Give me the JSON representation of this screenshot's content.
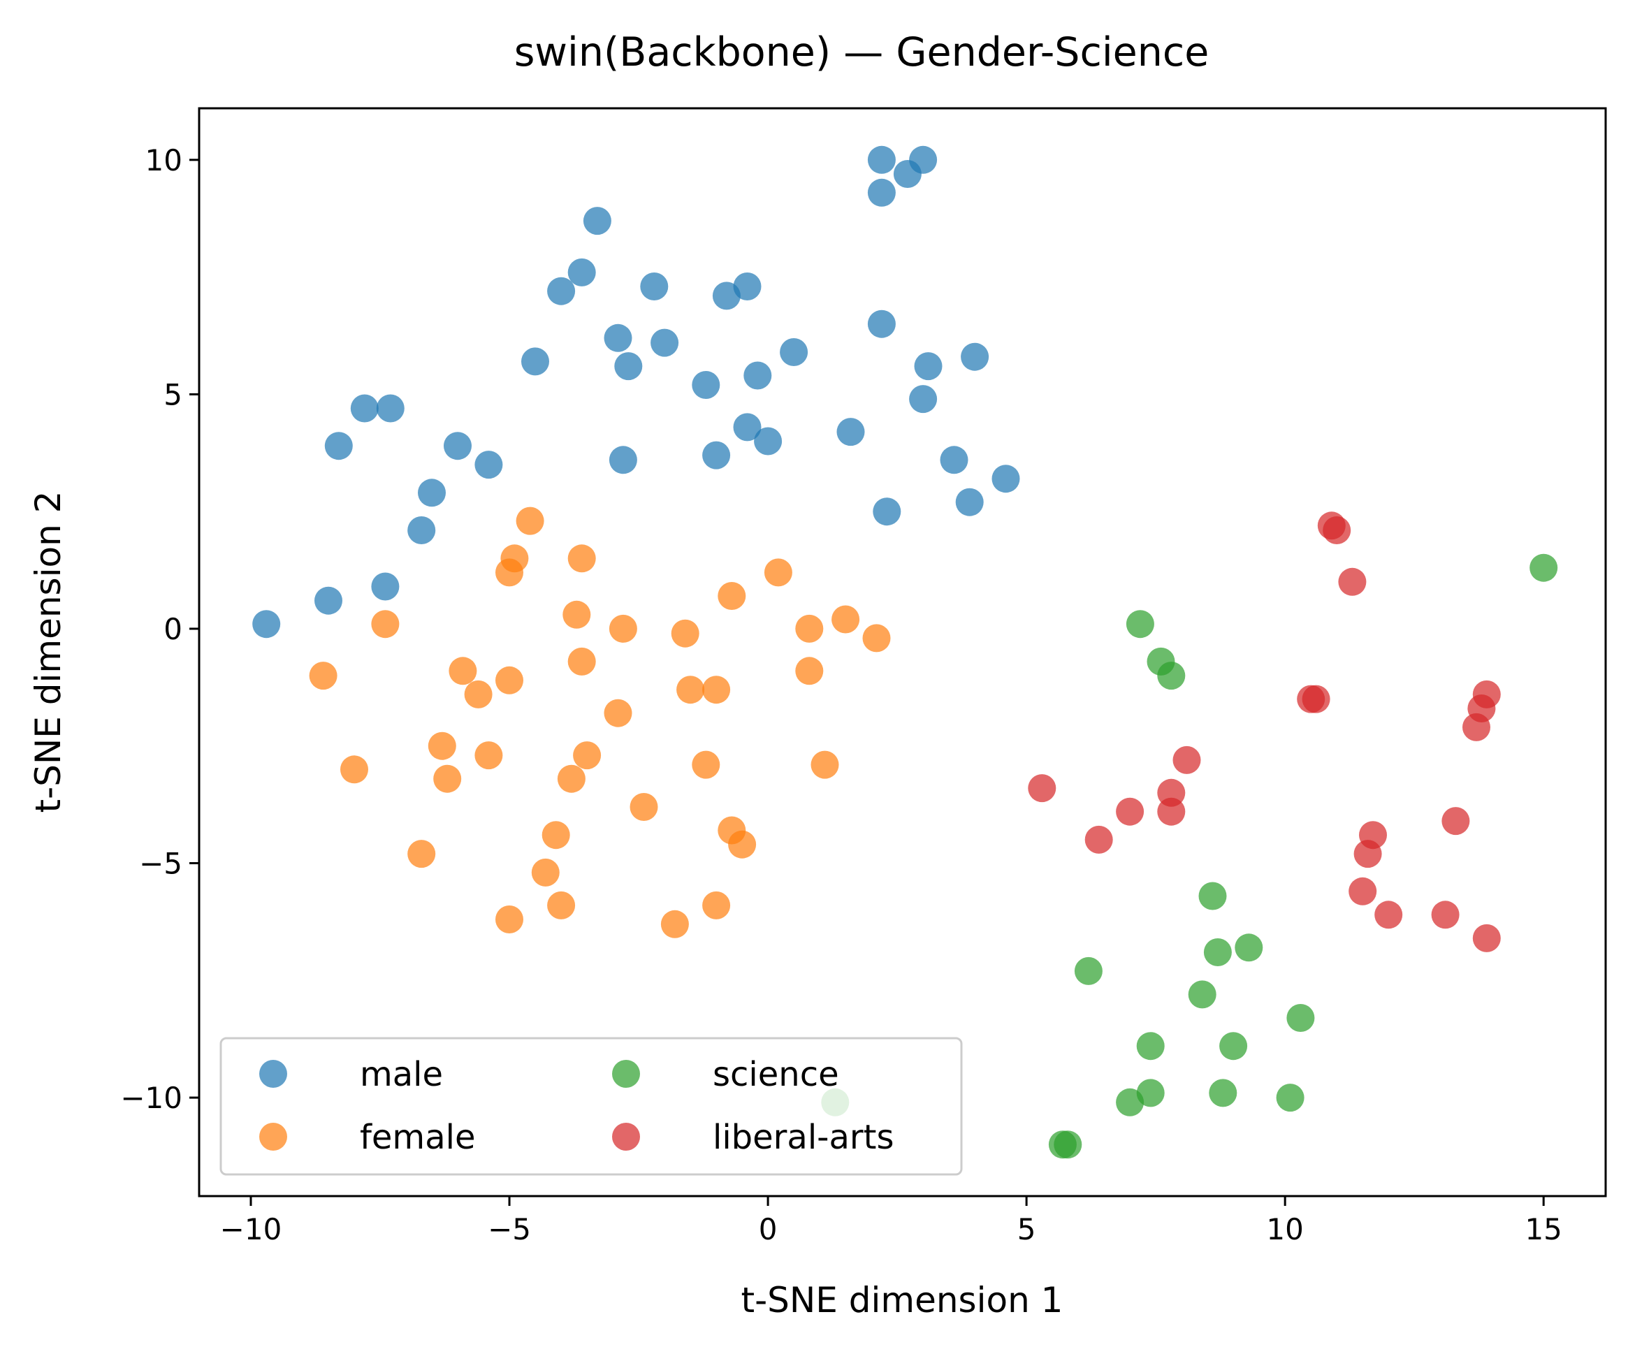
{
  "chart_data": {
    "type": "scatter",
    "title": "swin(Backbone) — Gender-Science",
    "xlabel": "t-SNE dimension 1",
    "ylabel": "t-SNE dimension 2",
    "xlim": [
      -11,
      16.2
    ],
    "ylim": [
      -12.1,
      11.1
    ],
    "xticks": [
      -10,
      -5,
      0,
      5,
      10,
      15
    ],
    "xtick_labels": [
      "−10",
      "−5",
      "0",
      "5",
      "10",
      "15"
    ],
    "yticks": [
      -10,
      -5,
      0,
      5,
      10
    ],
    "ytick_labels": [
      "−10",
      "−5",
      "0",
      "5",
      "10"
    ],
    "grid": false,
    "legend": {
      "placement": "lower-left",
      "columns": 2
    },
    "series": [
      {
        "name": "male",
        "color": "#1f77b4",
        "points": [
          [
            2.2,
            10.0
          ],
          [
            3.0,
            10.0
          ],
          [
            2.7,
            9.7
          ],
          [
            2.2,
            9.3
          ],
          [
            -3.3,
            8.7
          ],
          [
            -3.6,
            7.6
          ],
          [
            -4.0,
            7.2
          ],
          [
            -2.2,
            7.3
          ],
          [
            -0.4,
            7.3
          ],
          [
            -0.8,
            7.1
          ],
          [
            2.2,
            6.5
          ],
          [
            -2.9,
            6.2
          ],
          [
            -2.0,
            6.1
          ],
          [
            0.5,
            5.9
          ],
          [
            -4.5,
            5.7
          ],
          [
            -2.7,
            5.6
          ],
          [
            -0.2,
            5.4
          ],
          [
            -1.2,
            5.2
          ],
          [
            3.1,
            5.6
          ],
          [
            4.0,
            5.8
          ],
          [
            3.0,
            4.9
          ],
          [
            -7.8,
            4.7
          ],
          [
            -7.3,
            4.7
          ],
          [
            -0.4,
            4.3
          ],
          [
            0.0,
            4.0
          ],
          [
            1.6,
            4.2
          ],
          [
            -8.3,
            3.9
          ],
          [
            -6.0,
            3.9
          ],
          [
            -5.4,
            3.5
          ],
          [
            -2.8,
            3.6
          ],
          [
            -1.0,
            3.7
          ],
          [
            3.6,
            3.6
          ],
          [
            -6.5,
            2.9
          ],
          [
            -6.7,
            2.1
          ],
          [
            3.9,
            2.7
          ],
          [
            4.6,
            3.2
          ],
          [
            2.3,
            2.5
          ],
          [
            -7.4,
            0.9
          ],
          [
            -8.5,
            0.6
          ],
          [
            -9.7,
            0.1
          ]
        ]
      },
      {
        "name": "female",
        "color": "#ff7f0e",
        "points": [
          [
            -4.6,
            2.3
          ],
          [
            -4.9,
            1.5
          ],
          [
            -5.0,
            1.2
          ],
          [
            -3.6,
            1.5
          ],
          [
            0.2,
            1.2
          ],
          [
            -0.7,
            0.7
          ],
          [
            -3.7,
            0.3
          ],
          [
            -7.4,
            0.1
          ],
          [
            -2.8,
            0.0
          ],
          [
            -1.6,
            -0.1
          ],
          [
            0.8,
            0.0
          ],
          [
            1.5,
            0.2
          ],
          [
            2.1,
            -0.2
          ],
          [
            -8.6,
            -1.0
          ],
          [
            -5.9,
            -0.9
          ],
          [
            -3.6,
            -0.7
          ],
          [
            -5.0,
            -1.1
          ],
          [
            -5.6,
            -1.4
          ],
          [
            -1.5,
            -1.3
          ],
          [
            -1.0,
            -1.3
          ],
          [
            0.8,
            -0.9
          ],
          [
            -2.9,
            -1.8
          ],
          [
            -6.3,
            -2.5
          ],
          [
            -5.4,
            -2.7
          ],
          [
            -3.5,
            -2.7
          ],
          [
            -8.0,
            -3.0
          ],
          [
            -6.2,
            -3.2
          ],
          [
            -3.8,
            -3.2
          ],
          [
            -1.2,
            -2.9
          ],
          [
            1.1,
            -2.9
          ],
          [
            -2.4,
            -3.8
          ],
          [
            -4.1,
            -4.4
          ],
          [
            -0.7,
            -4.3
          ],
          [
            -6.7,
            -4.8
          ],
          [
            -4.3,
            -5.2
          ],
          [
            -0.5,
            -4.6
          ],
          [
            -4.0,
            -5.9
          ],
          [
            -1.0,
            -5.9
          ],
          [
            -5.0,
            -6.2
          ],
          [
            -1.8,
            -6.3
          ]
        ]
      },
      {
        "name": "science",
        "color": "#2ca02c",
        "points": [
          [
            15.0,
            1.3
          ],
          [
            7.2,
            0.1
          ],
          [
            7.6,
            -0.7
          ],
          [
            7.8,
            -1.0
          ],
          [
            8.6,
            -5.7
          ],
          [
            8.7,
            -6.9
          ],
          [
            9.3,
            -6.8
          ],
          [
            6.2,
            -7.3
          ],
          [
            8.4,
            -7.8
          ],
          [
            10.3,
            -8.3
          ],
          [
            7.4,
            -8.9
          ],
          [
            9.0,
            -8.9
          ],
          [
            7.4,
            -9.9
          ],
          [
            8.8,
            -9.9
          ],
          [
            10.1,
            -10.0
          ],
          [
            7.0,
            -10.1
          ],
          [
            1.3,
            -10.1
          ],
          [
            5.7,
            -11.0
          ],
          [
            5.8,
            -11.0
          ]
        ]
      },
      {
        "name": "liberal-arts",
        "color": "#d62728",
        "points": [
          [
            10.9,
            2.2
          ],
          [
            11.0,
            2.1
          ],
          [
            11.3,
            1.0
          ],
          [
            10.5,
            -1.5
          ],
          [
            10.6,
            -1.5
          ],
          [
            13.9,
            -1.4
          ],
          [
            13.8,
            -1.7
          ],
          [
            13.7,
            -2.1
          ],
          [
            8.1,
            -2.8
          ],
          [
            7.8,
            -3.5
          ],
          [
            5.3,
            -3.4
          ],
          [
            7.0,
            -3.9
          ],
          [
            7.8,
            -3.9
          ],
          [
            6.4,
            -4.5
          ],
          [
            11.7,
            -4.4
          ],
          [
            13.3,
            -4.1
          ],
          [
            11.6,
            -4.8
          ],
          [
            11.5,
            -5.6
          ],
          [
            12.0,
            -6.1
          ],
          [
            13.1,
            -6.1
          ],
          [
            13.9,
            -6.6
          ]
        ]
      }
    ]
  }
}
